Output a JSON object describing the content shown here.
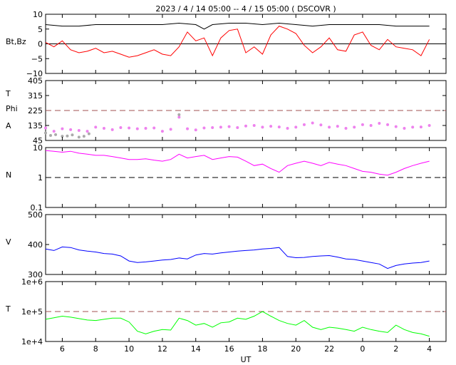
{
  "title": "2023 /  4 / 14   05:00  --  4 / 15   05:00 ( DSCOVR )",
  "x_axis": {
    "label": "UT",
    "ticks": [
      "6",
      "8",
      "10",
      "12",
      "14",
      "16",
      "18",
      "20",
      "22",
      "0",
      "2",
      "4"
    ],
    "range_hours": [
      5,
      29
    ]
  },
  "chart_data": [
    {
      "type": "line",
      "panel": "magnetic-field",
      "ylabel": "Bt,Bz",
      "ylim": [
        -10,
        10
      ],
      "yticks": [
        "10",
        "5",
        "0",
        "−5",
        "−10"
      ],
      "ytick_values": [
        10,
        5,
        0,
        -5,
        -10
      ],
      "reference_lines": [
        {
          "y": 0,
          "style": "solid",
          "color": "#000000"
        }
      ],
      "series": [
        {
          "color": "#000000",
          "x": [
            5.0,
            6.0,
            7.0,
            8.0,
            9.0,
            10.0,
            11.0,
            12.0,
            13.0,
            14.0,
            14.5,
            15.0,
            16.0,
            17.0,
            18.0,
            19.0,
            20.0,
            21.0,
            22.0,
            23.0,
            24.0,
            25.0,
            26.0,
            27.0,
            28.0,
            28.0
          ],
          "values": [
            6.5,
            6.0,
            6.0,
            6.5,
            6.5,
            6.5,
            6.5,
            6.5,
            7.0,
            6.5,
            5.0,
            6.5,
            7.0,
            7.0,
            6.5,
            7.0,
            6.5,
            6.0,
            6.5,
            6.5,
            6.5,
            6.5,
            6.0,
            6.0,
            6.0,
            6.0
          ]
        },
        {
          "color": "#ff0000",
          "x": [
            5.0,
            5.5,
            6.0,
            6.5,
            7.0,
            7.5,
            8.0,
            8.5,
            9.0,
            9.5,
            10.0,
            10.5,
            11.0,
            11.5,
            12.0,
            12.5,
            13.0,
            13.5,
            14.0,
            14.5,
            15.0,
            15.5,
            16.0,
            16.5,
            17.0,
            17.5,
            18.0,
            18.5,
            19.0,
            19.5,
            20.0,
            20.5,
            21.0,
            21.5,
            22.0,
            22.5,
            23.0,
            23.5,
            24.0,
            24.5,
            25.0,
            25.5,
            26.0,
            26.5,
            27.0,
            27.5,
            28.0
          ],
          "values": [
            0.5,
            -1.0,
            1.0,
            -2.0,
            -3.0,
            -2.5,
            -1.5,
            -3.0,
            -2.5,
            -3.5,
            -4.5,
            -4.0,
            -3.0,
            -2.0,
            -3.5,
            -4.0,
            -1.0,
            4.0,
            1.0,
            2.0,
            -4.0,
            2.0,
            4.5,
            5.0,
            -3.0,
            -1.0,
            -3.5,
            3.0,
            6.0,
            5.0,
            3.5,
            -0.5,
            -3.0,
            -1.0,
            2.0,
            -2.0,
            -2.5,
            3.0,
            4.0,
            -0.5,
            -2.0,
            1.5,
            -1.0,
            -1.5,
            -2.0,
            -4.0,
            1.5
          ]
        }
      ]
    },
    {
      "type": "scatter",
      "panel": "temperature-phi",
      "ylabel": "T",
      "ylabel_2": "Phi",
      "ylabel_3": "A",
      "ylim": [
        45,
        405
      ],
      "yticks": [
        "405",
        "315",
        "225",
        "135",
        "45"
      ],
      "ytick_values": [
        405,
        315,
        225,
        135,
        45
      ],
      "reference_lines": [
        {
          "y": 225,
          "style": "dashed",
          "color": "#a05050"
        }
      ],
      "series": [
        {
          "color": "#ee82ee",
          "x": [
            5.0,
            5.5,
            6.0,
            6.5,
            7.0,
            7.5,
            8.0,
            8.5,
            9.0,
            9.5,
            10.0,
            10.5,
            11.0,
            11.5,
            12.0,
            12.5,
            13.0,
            13.5,
            14.0,
            14.5,
            15.0,
            15.5,
            16.0,
            16.5,
            17.0,
            17.5,
            18.0,
            18.5,
            19.0,
            19.5,
            20.0,
            20.5,
            21.0,
            21.5,
            22.0,
            22.5,
            23.0,
            23.5,
            24.0,
            24.5,
            25.0,
            25.5,
            26.0,
            26.5,
            27.0,
            27.5,
            28.0
          ],
          "values": [
            120,
            100,
            115,
            110,
            105,
            100,
            125,
            118,
            110,
            122,
            120,
            115,
            118,
            120,
            100,
            112,
            185,
            115,
            108,
            120,
            122,
            125,
            128,
            122,
            132,
            135,
            125,
            130,
            126,
            118,
            125,
            140,
            150,
            138,
            125,
            130,
            118,
            125,
            140,
            135,
            148,
            140,
            128,
            118,
            125,
            126,
            135
          ]
        },
        {
          "color": "#aaaaaa",
          "x": [
            5.0,
            5.3,
            5.6,
            6.0,
            6.3,
            6.6,
            7.0,
            7.3,
            7.6,
            13.0
          ],
          "values": [
            90,
            75,
            80,
            70,
            72,
            78,
            65,
            70,
            85,
            200
          ]
        }
      ]
    },
    {
      "type": "line",
      "panel": "density",
      "ylabel": "N",
      "scale": "log",
      "ylim": [
        0.1,
        10
      ],
      "yticks": [
        "10",
        "1",
        "0.1"
      ],
      "ytick_values": [
        10,
        1,
        0.1
      ],
      "reference_lines": [
        {
          "y": 1,
          "style": "dashed",
          "color": "#000000"
        }
      ],
      "series": [
        {
          "color": "#ff00ff",
          "x": [
            5.0,
            5.5,
            6.0,
            6.5,
            7.0,
            7.5,
            8.0,
            8.5,
            9.0,
            9.5,
            10.0,
            10.5,
            11.0,
            11.5,
            12.0,
            12.5,
            13.0,
            13.5,
            14.0,
            14.5,
            15.0,
            15.5,
            16.0,
            16.5,
            17.0,
            17.5,
            18.0,
            18.5,
            19.0,
            19.5,
            20.0,
            20.5,
            21.0,
            21.5,
            22.0,
            22.5,
            23.0,
            23.5,
            24.0,
            24.5,
            25.0,
            25.5,
            26.0,
            26.5,
            27.0,
            27.5,
            28.0
          ],
          "values": [
            8.0,
            7.5,
            7.0,
            7.5,
            6.5,
            6.0,
            5.5,
            5.5,
            5.0,
            4.5,
            4.0,
            4.0,
            4.2,
            3.8,
            3.5,
            4.0,
            6.0,
            4.5,
            5.0,
            5.5,
            4.0,
            4.5,
            5.0,
            4.8,
            3.5,
            2.5,
            2.8,
            2.0,
            1.5,
            2.5,
            3.0,
            3.5,
            3.0,
            2.5,
            3.2,
            2.8,
            2.5,
            2.0,
            1.6,
            1.5,
            1.3,
            1.2,
            1.5,
            2.0,
            2.5,
            3.0,
            3.5
          ]
        }
      ]
    },
    {
      "type": "line",
      "panel": "velocity",
      "ylabel": "V",
      "ylim": [
        300,
        500
      ],
      "yticks": [
        "500",
        "400",
        "300"
      ],
      "ytick_values": [
        500,
        400,
        300
      ],
      "series": [
        {
          "color": "#0000ff",
          "x": [
            5.0,
            5.5,
            6.0,
            6.5,
            7.0,
            7.5,
            8.0,
            8.5,
            9.0,
            9.5,
            10.0,
            10.5,
            11.0,
            11.5,
            12.0,
            12.5,
            13.0,
            13.5,
            14.0,
            14.5,
            15.0,
            15.5,
            16.0,
            16.5,
            17.0,
            17.5,
            18.0,
            18.5,
            19.0,
            19.5,
            20.0,
            20.5,
            21.0,
            21.5,
            22.0,
            22.5,
            23.0,
            23.5,
            24.0,
            24.5,
            25.0,
            25.5,
            26.0,
            26.5,
            27.0,
            27.5,
            28.0
          ],
          "values": [
            385,
            380,
            392,
            390,
            382,
            378,
            375,
            370,
            368,
            362,
            345,
            340,
            342,
            345,
            348,
            350,
            355,
            352,
            365,
            370,
            368,
            372,
            375,
            378,
            380,
            382,
            385,
            387,
            390,
            360,
            356,
            357,
            360,
            362,
            363,
            358,
            352,
            350,
            345,
            340,
            335,
            320,
            330,
            335,
            338,
            340,
            345
          ]
        }
      ]
    },
    {
      "type": "line",
      "panel": "ion-temperature",
      "ylabel": "T",
      "scale": "log",
      "ylim": [
        10000,
        1000000
      ],
      "yticks": [
        "1e+6",
        "1e+5",
        "1e+4"
      ],
      "ytick_values": [
        1000000,
        100000,
        10000
      ],
      "reference_lines": [
        {
          "y": 100000,
          "style": "dashed",
          "color": "#a05050"
        }
      ],
      "series": [
        {
          "color": "#00ff00",
          "x": [
            5.0,
            5.5,
            6.0,
            6.5,
            7.0,
            7.5,
            8.0,
            8.5,
            9.0,
            9.5,
            10.0,
            10.5,
            11.0,
            11.5,
            12.0,
            12.5,
            13.0,
            13.5,
            14.0,
            14.5,
            15.0,
            15.5,
            16.0,
            16.5,
            17.0,
            17.5,
            18.0,
            18.5,
            19.0,
            19.5,
            20.0,
            20.5,
            21.0,
            21.5,
            22.0,
            22.5,
            23.0,
            23.5,
            24.0,
            24.5,
            25.0,
            25.5,
            26.0,
            26.5,
            27.0,
            27.5,
            28.0
          ],
          "values": [
            55000,
            62000,
            70000,
            65000,
            58000,
            52000,
            50000,
            55000,
            60000,
            60000,
            45000,
            22000,
            18000,
            22000,
            25000,
            24000,
            60000,
            50000,
            35000,
            40000,
            30000,
            42000,
            45000,
            60000,
            55000,
            70000,
            100000,
            70000,
            50000,
            40000,
            35000,
            50000,
            30000,
            25000,
            30000,
            28000,
            25000,
            22000,
            30000,
            25000,
            22000,
            20000,
            35000,
            25000,
            20000,
            18000,
            15000
          ]
        }
      ]
    }
  ]
}
